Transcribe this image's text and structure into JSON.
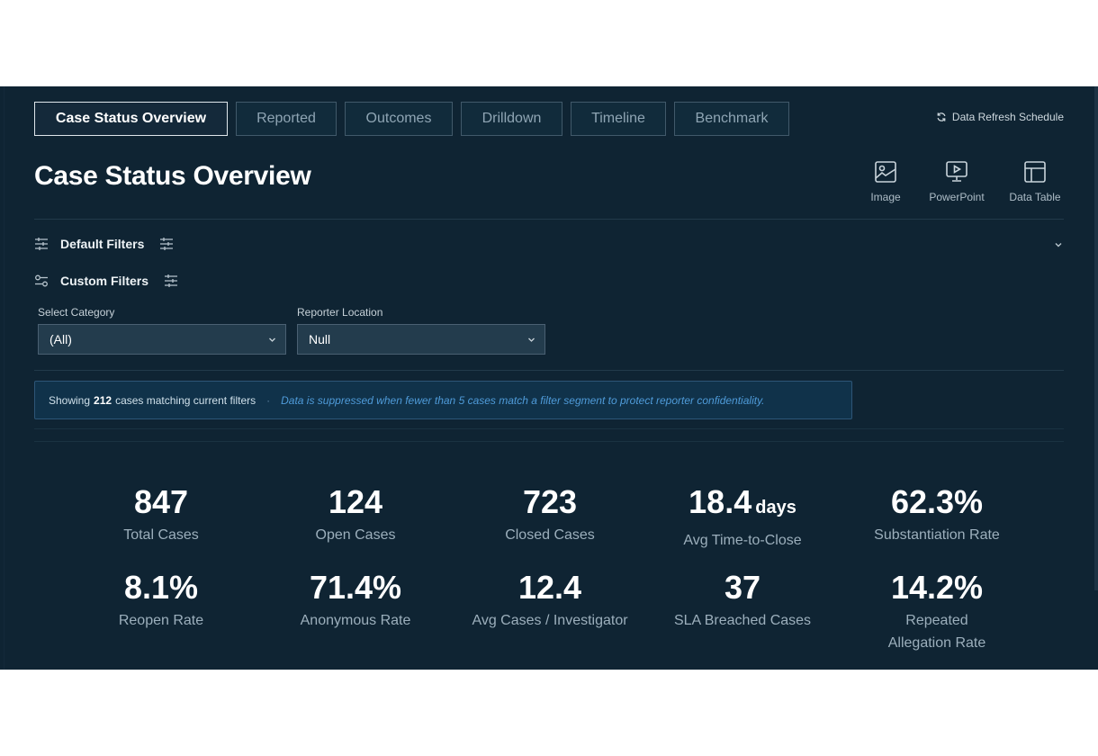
{
  "tabs": [
    {
      "label": "Case Status Overview",
      "active": true
    },
    {
      "label": "Reported"
    },
    {
      "label": "Outcomes"
    },
    {
      "label": "Drilldown"
    },
    {
      "label": "Timeline"
    },
    {
      "label": "Benchmark"
    }
  ],
  "header": {
    "refresh_label": "Data Refresh Schedule",
    "title": "Case Status Overview"
  },
  "exports": [
    {
      "label": "Image",
      "icon": "image-icon"
    },
    {
      "label": "PowerPoint",
      "icon": "presentation-icon"
    },
    {
      "label": "Data Table",
      "icon": "table-icon"
    }
  ],
  "filters": {
    "default_label": "Default Filters",
    "custom_label": "Custom Filters",
    "category": {
      "label": "Select Category",
      "value": "(All)"
    },
    "location": {
      "label": "Reporter Location",
      "value": "Null"
    }
  },
  "notice": {
    "prefix": "Showing",
    "count": "212",
    "suffix": "cases matching current filters",
    "separator": "·",
    "note": "Data is suppressed when fewer than 5 cases match a filter segment to protect reporter confidentiality."
  },
  "kpis": [
    {
      "value": "847",
      "unit": "",
      "label": "Total Cases"
    },
    {
      "value": "124",
      "unit": "",
      "label": "Open Cases"
    },
    {
      "value": "723",
      "unit": "",
      "label": "Closed Cases"
    },
    {
      "value": "18.4",
      "unit": "days",
      "label": "Avg Time-to-Close"
    },
    {
      "value": "62.3%",
      "unit": "",
      "label": "Substantiation Rate"
    },
    {
      "value": "8.1%",
      "unit": "",
      "label": "Reopen Rate"
    },
    {
      "value": "71.4%",
      "unit": "",
      "label": "Anonymous Rate"
    },
    {
      "value": "12.4",
      "unit": "",
      "label": "Avg Cases / Investigator"
    },
    {
      "value": "37",
      "unit": "",
      "label": "SLA Breached Cases"
    },
    {
      "value": "14.2%",
      "unit": "",
      "label": "Repeated Allegation Rate"
    }
  ]
}
